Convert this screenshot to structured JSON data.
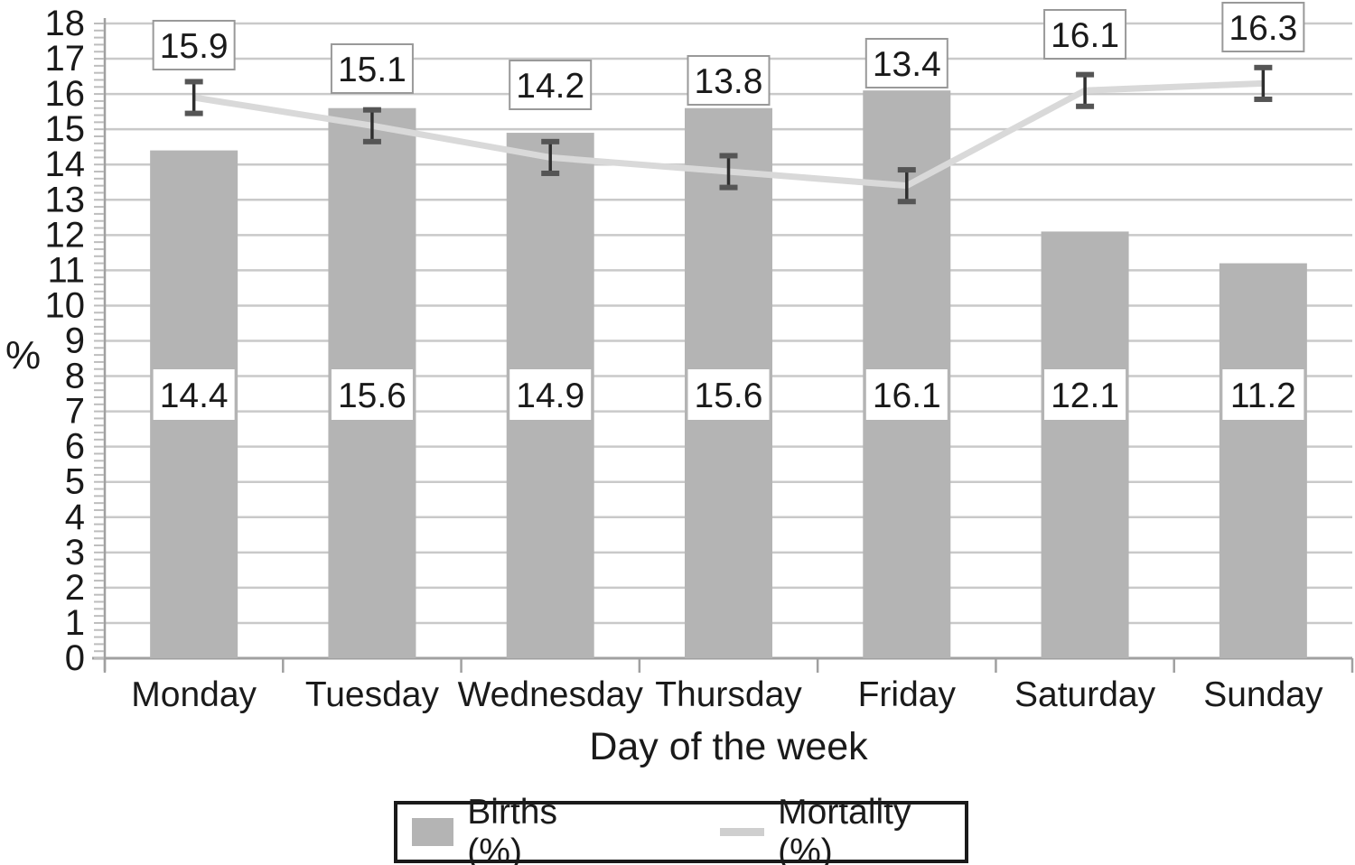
{
  "figure": {
    "background": "#ffffff"
  },
  "chart_data": {
    "type": "bar+line",
    "title": "",
    "categories": [
      "Monday",
      "Tuesday",
      "Wednesday",
      "Thursday",
      "Friday",
      "Saturday",
      "Sunday"
    ],
    "series": [
      {
        "name": "Births (%)",
        "type": "bar",
        "values": [
          14.4,
          15.6,
          14.9,
          15.6,
          16.1,
          12.1,
          11.2
        ],
        "data_labels": [
          "14.4",
          "15.6",
          "14.9",
          "15.6",
          "16.1",
          "12.1",
          "11.2"
        ],
        "color": "#b4b4b4"
      },
      {
        "name": "Mortality (%)",
        "type": "line",
        "values": [
          15.9,
          15.1,
          14.2,
          13.8,
          13.4,
          16.1,
          16.3
        ],
        "data_labels": [
          "15.9",
          "15.1",
          "14.2",
          "13.8",
          "13.4",
          "16.1",
          "16.3"
        ],
        "error": 0.45,
        "color": "#d9d9d9"
      }
    ],
    "xlabel": "Day of the week",
    "ylabel": "%",
    "ylim": [
      0,
      18
    ],
    "ytick_step": 1,
    "yminor_step": 0.2,
    "grid": "horizontal",
    "legend_position": "bottom",
    "layout_hints": {
      "mortality_label_y_centers": [
        50,
        76,
        94,
        89,
        70,
        38,
        30
      ],
      "births_label_y_center": 437
    },
    "colors": {
      "bar": "#b4b4b4",
      "line": "#d9d9d9",
      "grid": "#c9c9c9",
      "axis": "#a0a0a0",
      "minor_tick": "#bdbdbd",
      "error_bar": "#2f2f2f",
      "error_cap": "#555555",
      "label_box_border": "#999999",
      "label_box_fill": "#ffffff",
      "text": "#1a1a1a"
    }
  }
}
